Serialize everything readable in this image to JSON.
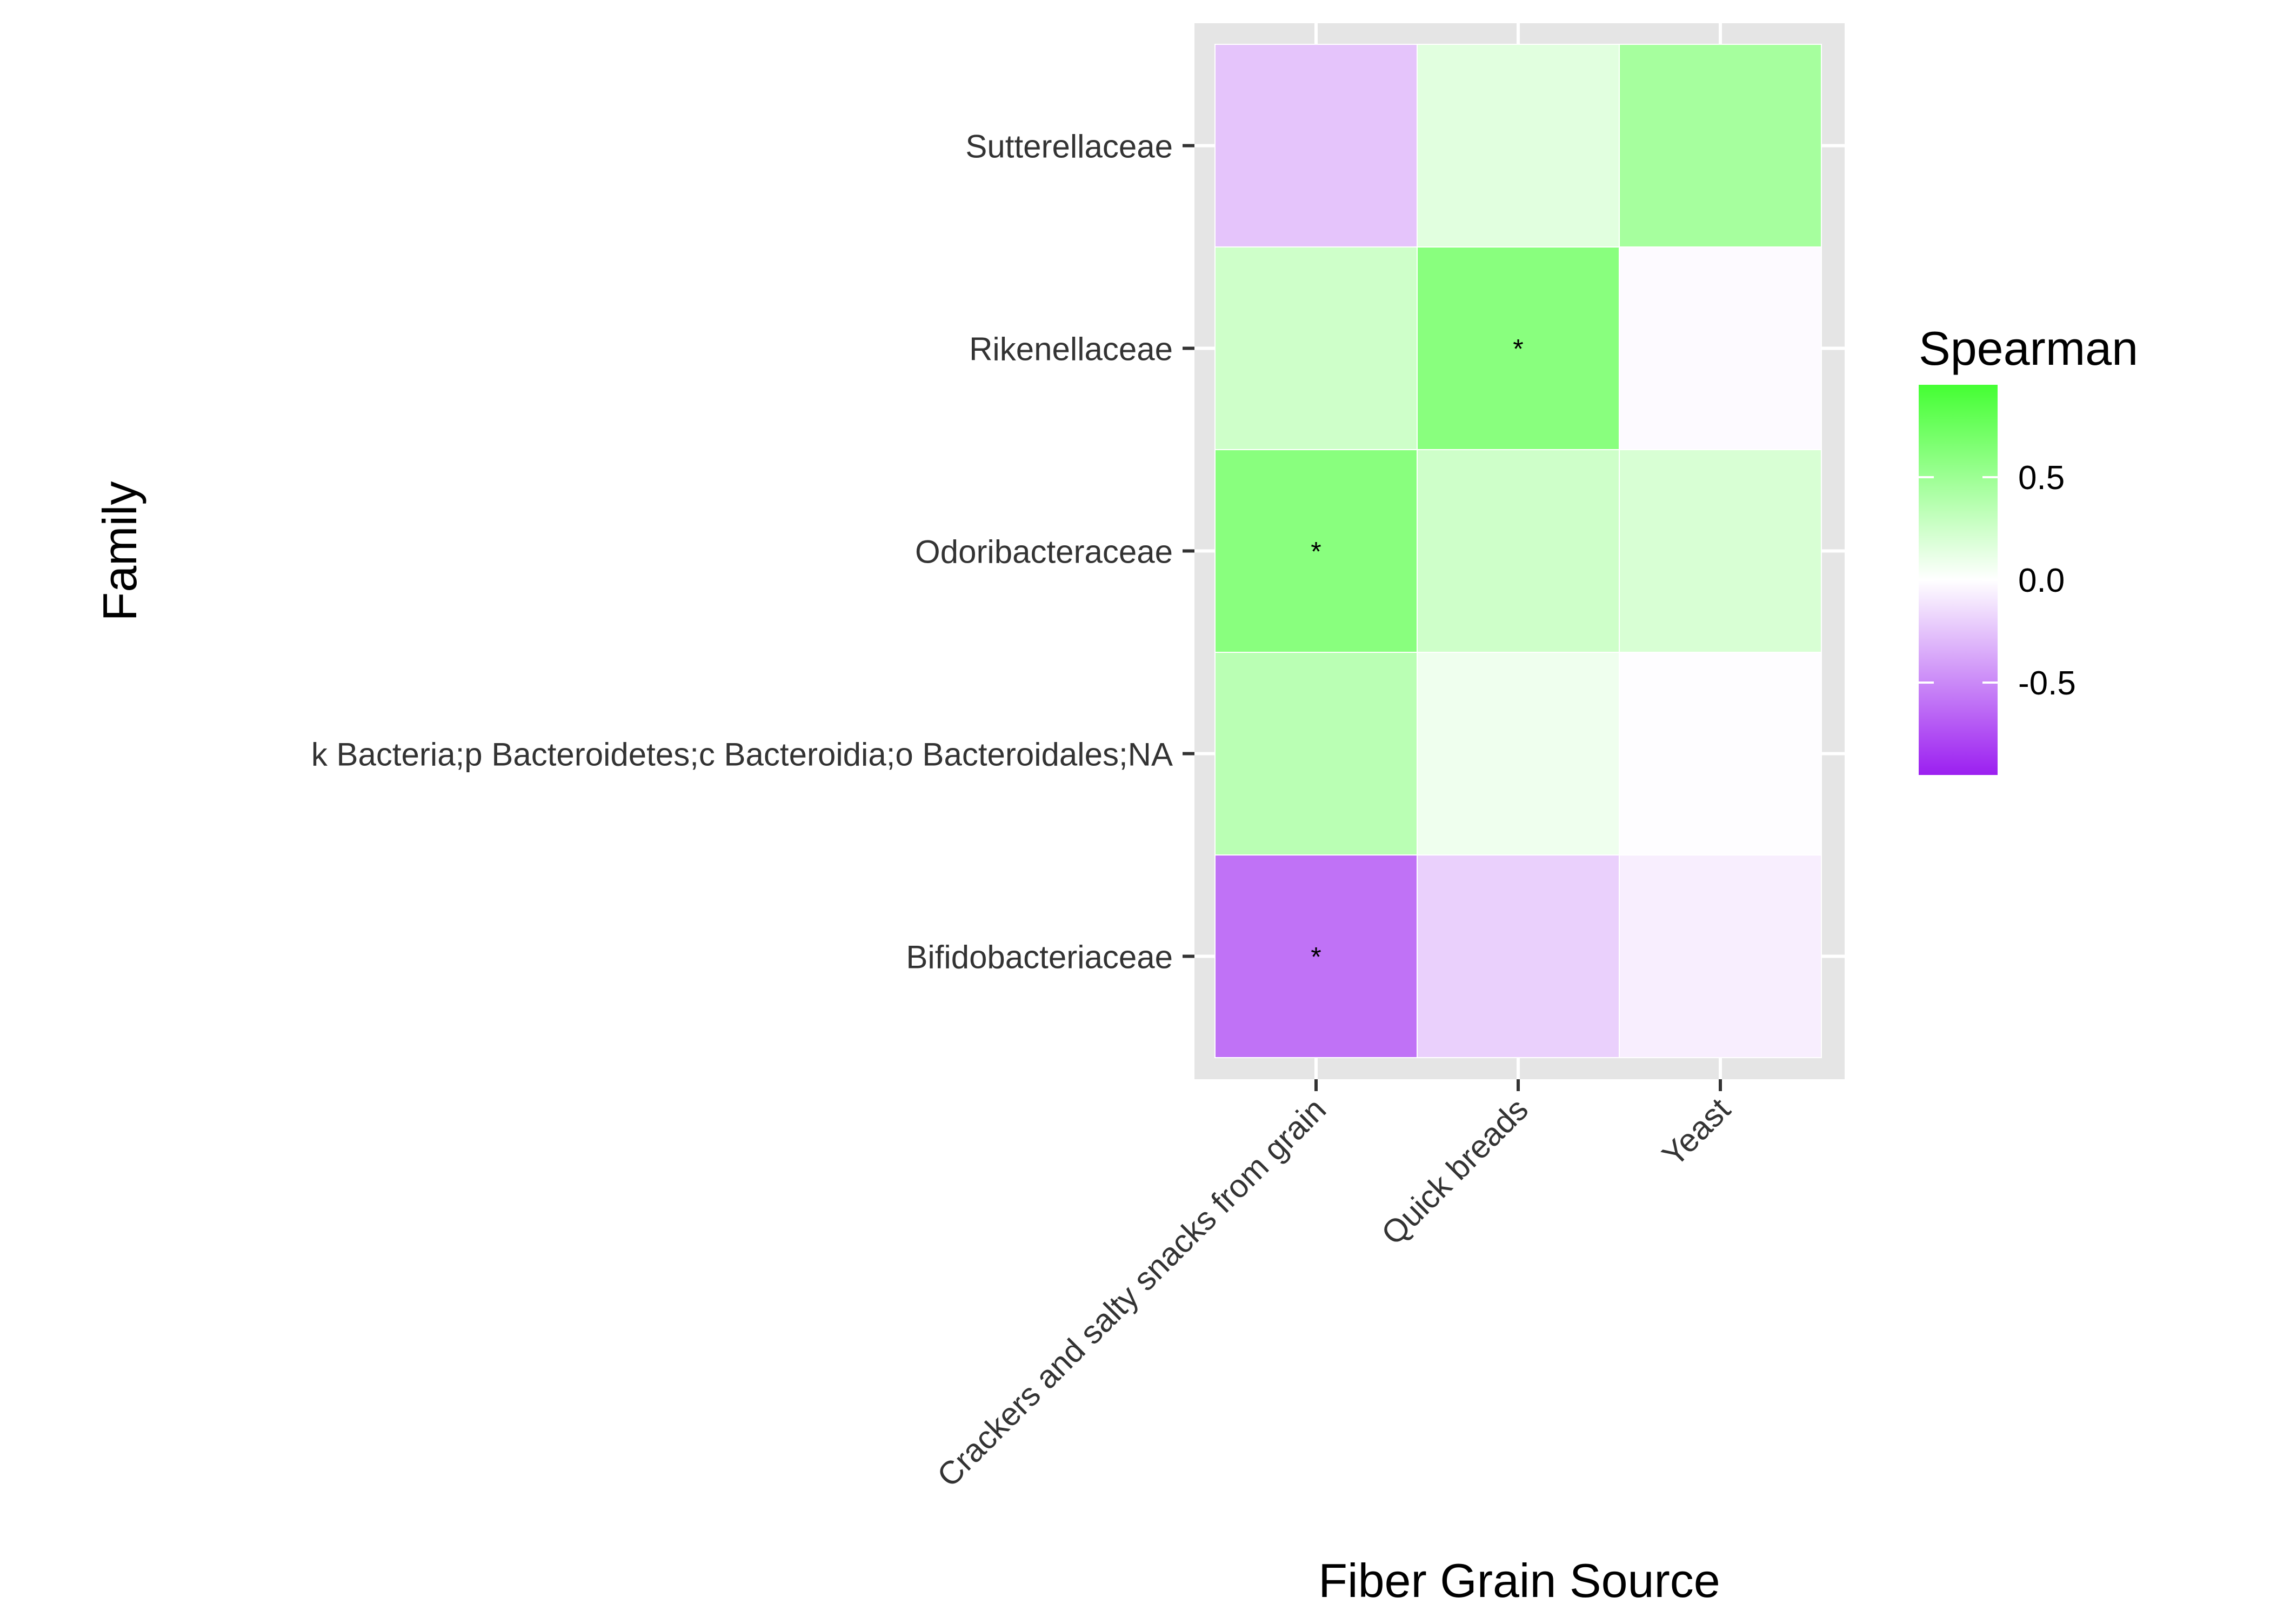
{
  "chart_data": {
    "type": "heatmap",
    "title": "",
    "xlabel": "Fiber Grain Source",
    "ylabel": "Family",
    "x_categories": [
      "Crackers and salty snacks from grain",
      "Quick breads",
      "Yeast"
    ],
    "y_categories": [
      "Sutterellaceae",
      "Rikenellaceae",
      "Odoribacteraceae",
      "k  Bacteria;p  Bacteroidetes;c  Bacteroidia;o  Bacteroidales;NA",
      "Bifidobacteriaceae"
    ],
    "values": [
      [
        -0.25,
        0.15,
        0.45
      ],
      [
        0.25,
        0.6,
        -0.02
      ],
      [
        0.6,
        0.25,
        0.2
      ],
      [
        0.35,
        0.08,
        -0.01
      ],
      [
        -0.6,
        -0.2,
        -0.07
      ]
    ],
    "significance": [
      [
        "",
        "",
        ""
      ],
      [
        "",
        "*",
        ""
      ],
      [
        "*",
        "",
        ""
      ],
      [
        "",
        "",
        ""
      ],
      [
        "*",
        "",
        ""
      ]
    ],
    "legend": {
      "title": "Spearman",
      "ticks": [
        "0.5",
        "0.0",
        "-0.5"
      ],
      "range": [
        -0.95,
        0.95
      ],
      "low_color": "#9b1ff0",
      "mid_color": "#ffffff",
      "high_color": "#44ff33",
      "placement": "right"
    },
    "panel_background": "#e5e5e5",
    "gridlines": true
  }
}
